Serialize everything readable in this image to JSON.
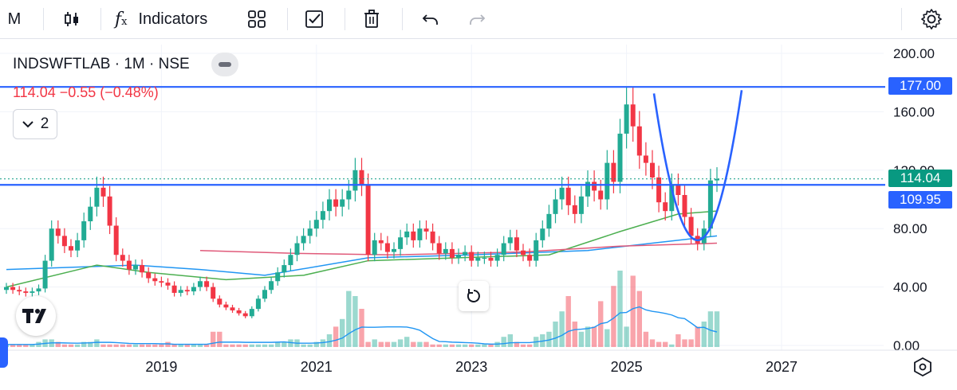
{
  "toolbar": {
    "interval": "M",
    "indicators_label": "Indicators"
  },
  "legend": {
    "title": "INDSWFTLAB · 1M · NSE",
    "values": "114.04 −0.55 (−0.48%)",
    "collapse_count": "2"
  },
  "price_tags": {
    "resistance": "177.00",
    "last": "114.04",
    "support": "109.95"
  },
  "colors": {
    "up": "#22ab94",
    "down": "#f23645",
    "drawing": "#2962ff",
    "ma_green": "#4caf50",
    "ma_blue": "#2196f3",
    "ma_red": "#e05a7a",
    "last_tag": "#089981"
  },
  "chart_data": {
    "type": "candlestick",
    "interval": "1M",
    "symbol": "INDSWFTLAB",
    "exchange": "NSE",
    "y_ticks": [
      0,
      40,
      80,
      120,
      160,
      200
    ],
    "y_tick_labels": [
      "0.00",
      "40.00",
      "80.00",
      "120.00",
      "160.00",
      "200.00"
    ],
    "ylim": [
      0,
      205
    ],
    "x_tick_labels": [
      "2019",
      "2021",
      "2023",
      "2025",
      "2027"
    ],
    "x_tick_years": [
      2019,
      2021,
      2023,
      2025,
      2027
    ],
    "start": "2017-01",
    "horizontal_lines": [
      177.0,
      109.95
    ],
    "last_price": 114.04,
    "closes": [
      40,
      38,
      37,
      36,
      37,
      39,
      58,
      80,
      75,
      68,
      65,
      72,
      85,
      95,
      108,
      102,
      82,
      62,
      58,
      52,
      55,
      50,
      46,
      44,
      43,
      41,
      36,
      38,
      37,
      40,
      44,
      40,
      32,
      28,
      26,
      24,
      22,
      20,
      25,
      32,
      38,
      44,
      50,
      55,
      62,
      70,
      75,
      80,
      86,
      92,
      100,
      95,
      100,
      106,
      120,
      110,
      62,
      72,
      70,
      64,
      66,
      74,
      78,
      72,
      80,
      78,
      70,
      63,
      66,
      60,
      62,
      64,
      58,
      60,
      60,
      58,
      62,
      70,
      74,
      65,
      62,
      58,
      72,
      80,
      90,
      100,
      108,
      96,
      90,
      102,
      112,
      106,
      100,
      125,
      112,
      145,
      165,
      150,
      130,
      125,
      115,
      98,
      92,
      110,
      103,
      88,
      75,
      70,
      80,
      113,
      114.04
    ],
    "volume": [
      1,
      1,
      1,
      1,
      1,
      2,
      3,
      3,
      2,
      1,
      1,
      1,
      2,
      2,
      3,
      1,
      1,
      1,
      1,
      1,
      1,
      1,
      1,
      1,
      1,
      2,
      1,
      1,
      1,
      1,
      1,
      1,
      6,
      6,
      1,
      1,
      1,
      1,
      1,
      1,
      1,
      1,
      2,
      2,
      3,
      3,
      1,
      1,
      2,
      3,
      5,
      8,
      11,
      22,
      20,
      15,
      2,
      3,
      2,
      2,
      2,
      3,
      4,
      2,
      2,
      2,
      1,
      1,
      1,
      1,
      1,
      1,
      1,
      1,
      1,
      1,
      2,
      4,
      5,
      2,
      1,
      1,
      4,
      5,
      6,
      10,
      14,
      20,
      10,
      6,
      8,
      8,
      18,
      7,
      24,
      30,
      8,
      28,
      22,
      6,
      3,
      2,
      2,
      1,
      5,
      3,
      3,
      8,
      10,
      14,
      14
    ],
    "volume_ma_label": "volume MA",
    "moving_averages": [
      {
        "color": "#2196f3",
        "points": [
          [
            0,
            52
          ],
          [
            20,
            55
          ],
          [
            30,
            52
          ],
          [
            40,
            48
          ],
          [
            56,
            60
          ],
          [
            72,
            62
          ],
          [
            90,
            65
          ],
          [
            100,
            70
          ],
          [
            110,
            75
          ]
        ]
      },
      {
        "color": "#4caf50",
        "points": [
          [
            0,
            40
          ],
          [
            14,
            55
          ],
          [
            22,
            50
          ],
          [
            34,
            45
          ],
          [
            46,
            48
          ],
          [
            56,
            58
          ],
          [
            70,
            60
          ],
          [
            84,
            62
          ],
          [
            95,
            78
          ],
          [
            104,
            90
          ],
          [
            110,
            92
          ]
        ]
      },
      {
        "color": "#e05a7a",
        "points": [
          [
            30,
            65
          ],
          [
            45,
            63
          ],
          [
            60,
            62
          ],
          [
            80,
            64
          ],
          [
            95,
            68
          ],
          [
            110,
            70
          ]
        ]
      }
    ],
    "curve_drawing": "parabola"
  }
}
